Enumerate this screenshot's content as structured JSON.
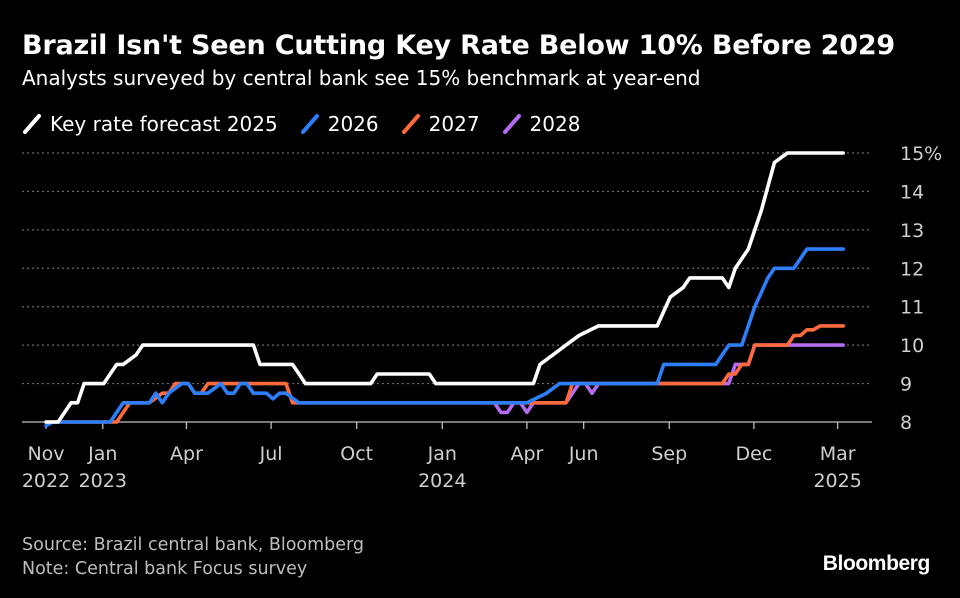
{
  "header": {
    "title": "Brazil Isn't Seen Cutting Key Rate Below 10% Before 2029",
    "subtitle": "Analysts surveyed by central bank see 15% benchmark at year-end"
  },
  "footer": {
    "source": "Source: Brazil central bank, Bloomberg",
    "note": "Note: Central bank Focus survey",
    "logo": "Bloomberg"
  },
  "chart_data": {
    "type": "line",
    "title": "Brazil Isn't Seen Cutting Key Rate Below 10% Before 2029",
    "subtitle": "Analysts surveyed by central bank see 15% benchmark at year-end",
    "xlabel": "",
    "ylabel": "",
    "ylim": [
      8,
      15
    ],
    "xlim": [
      "2022-11-01",
      "2025-03-10"
    ],
    "grid": "horizontal dotted",
    "legend_position": "top-left",
    "y_ticks": [
      {
        "value": 8,
        "label": "8"
      },
      {
        "value": 9,
        "label": "9"
      },
      {
        "value": 10,
        "label": "10"
      },
      {
        "value": 11,
        "label": "11"
      },
      {
        "value": 12,
        "label": "12"
      },
      {
        "value": 13,
        "label": "13"
      },
      {
        "value": 14,
        "label": "14"
      },
      {
        "value": 15,
        "label": "15%"
      }
    ],
    "x_ticks": [
      {
        "date": "2022-11-01",
        "label": "Nov",
        "year": "2022"
      },
      {
        "date": "2023-01-01",
        "label": "Jan",
        "year": "2023"
      },
      {
        "date": "2023-04-01",
        "label": "Apr",
        "year": ""
      },
      {
        "date": "2023-07-01",
        "label": "Jul",
        "year": ""
      },
      {
        "date": "2023-10-01",
        "label": "Oct",
        "year": ""
      },
      {
        "date": "2024-01-01",
        "label": "Jan",
        "year": "2024"
      },
      {
        "date": "2024-04-01",
        "label": "Apr",
        "year": ""
      },
      {
        "date": "2024-06-01",
        "label": "Jun",
        "year": ""
      },
      {
        "date": "2024-09-01",
        "label": "Sep",
        "year": ""
      },
      {
        "date": "2024-12-01",
        "label": "Dec",
        "year": ""
      },
      {
        "date": "2025-03-01",
        "label": "Mar",
        "year": "2025"
      }
    ],
    "series": [
      {
        "name": "2028",
        "color": "#b46cf0",
        "points": [
          [
            "2024-02-26",
            8.5
          ],
          [
            "2024-03-04",
            8.25
          ],
          [
            "2024-03-11",
            8.25
          ],
          [
            "2024-03-18",
            8.5
          ],
          [
            "2024-03-25",
            8.5
          ],
          [
            "2024-04-01",
            8.25
          ],
          [
            "2024-04-08",
            8.5
          ],
          [
            "2024-04-15",
            8.5
          ],
          [
            "2024-04-22",
            8.5
          ],
          [
            "2024-04-29",
            8.5
          ],
          [
            "2024-05-06",
            8.5
          ],
          [
            "2024-05-13",
            8.5
          ],
          [
            "2024-05-20",
            8.75
          ],
          [
            "2024-05-27",
            9.0
          ],
          [
            "2024-06-03",
            9.0
          ],
          [
            "2024-06-10",
            8.75
          ],
          [
            "2024-06-17",
            9.0
          ],
          [
            "2024-11-04",
            9.0
          ],
          [
            "2024-11-11",
            9.5
          ],
          [
            "2024-11-25",
            9.5
          ],
          [
            "2024-12-02",
            10.0
          ],
          [
            "2025-03-07",
            10.0
          ]
        ]
      },
      {
        "name": "2027",
        "color": "#ff6a3d",
        "points": [
          [
            "2022-11-01",
            8.0
          ],
          [
            "2023-01-16",
            8.0
          ],
          [
            "2023-01-30",
            8.5
          ],
          [
            "2023-02-20",
            8.5
          ],
          [
            "2023-03-06",
            8.75
          ],
          [
            "2023-03-13",
            8.75
          ],
          [
            "2023-03-20",
            9.0
          ],
          [
            "2023-04-03",
            9.0
          ],
          [
            "2023-04-10",
            8.75
          ],
          [
            "2023-04-17",
            8.75
          ],
          [
            "2023-04-24",
            9.0
          ],
          [
            "2023-05-08",
            9.0
          ],
          [
            "2023-05-15",
            9.0
          ],
          [
            "2023-07-17",
            9.0
          ],
          [
            "2023-07-24",
            8.5
          ],
          [
            "2024-04-29",
            8.5
          ],
          [
            "2024-05-06",
            8.5
          ],
          [
            "2024-05-13",
            8.5
          ],
          [
            "2024-05-20",
            9.0
          ],
          [
            "2024-08-26",
            9.0
          ],
          [
            "2024-09-09",
            9.0
          ],
          [
            "2024-10-28",
            9.0
          ],
          [
            "2024-11-04",
            9.25
          ],
          [
            "2024-11-11",
            9.25
          ],
          [
            "2024-11-18",
            9.5
          ],
          [
            "2024-11-25",
            9.5
          ],
          [
            "2024-12-02",
            10.0
          ],
          [
            "2025-01-06",
            10.0
          ],
          [
            "2025-01-13",
            10.25
          ],
          [
            "2025-01-20",
            10.25
          ],
          [
            "2025-01-27",
            10.4
          ],
          [
            "2025-02-03",
            10.4
          ],
          [
            "2025-02-10",
            10.5
          ],
          [
            "2025-03-07",
            10.5
          ]
        ]
      },
      {
        "name": "2026",
        "color": "#2d7ff9",
        "points": [
          [
            "2022-11-01",
            7.9
          ],
          [
            "2022-11-08",
            8.0
          ],
          [
            "2023-01-09",
            8.0
          ],
          [
            "2023-01-23",
            8.5
          ],
          [
            "2023-02-20",
            8.5
          ],
          [
            "2023-02-27",
            8.75
          ],
          [
            "2023-03-06",
            8.5
          ],
          [
            "2023-03-13",
            8.75
          ],
          [
            "2023-03-27",
            9.0
          ],
          [
            "2023-04-03",
            9.0
          ],
          [
            "2023-04-10",
            8.75
          ],
          [
            "2023-04-24",
            8.75
          ],
          [
            "2023-05-08",
            9.0
          ],
          [
            "2023-05-15",
            8.75
          ],
          [
            "2023-05-22",
            8.75
          ],
          [
            "2023-05-29",
            9.0
          ],
          [
            "2023-06-05",
            9.0
          ],
          [
            "2023-06-12",
            8.75
          ],
          [
            "2023-06-26",
            8.75
          ],
          [
            "2023-07-03",
            8.6
          ],
          [
            "2023-07-10",
            8.75
          ],
          [
            "2023-07-17",
            8.75
          ],
          [
            "2023-07-31",
            8.5
          ],
          [
            "2024-04-01",
            8.5
          ],
          [
            "2024-04-22",
            8.75
          ],
          [
            "2024-05-06",
            9.0
          ],
          [
            "2024-08-19",
            9.0
          ],
          [
            "2024-08-26",
            9.5
          ],
          [
            "2024-10-21",
            9.5
          ],
          [
            "2024-11-04",
            10.0
          ],
          [
            "2024-11-18",
            10.0
          ],
          [
            "2024-12-02",
            11.0
          ],
          [
            "2024-12-16",
            11.75
          ],
          [
            "2024-12-23",
            12.0
          ],
          [
            "2025-01-13",
            12.0
          ],
          [
            "2025-01-27",
            12.5
          ],
          [
            "2025-03-07",
            12.5
          ]
        ]
      },
      {
        "name": "Key rate forecast 2025",
        "color": "#ffffff",
        "points": [
          [
            "2022-11-01",
            8.0
          ],
          [
            "2022-11-14",
            8.0
          ],
          [
            "2022-11-28",
            8.5
          ],
          [
            "2022-12-05",
            8.5
          ],
          [
            "2022-12-12",
            9.0
          ],
          [
            "2023-01-02",
            9.0
          ],
          [
            "2023-01-16",
            9.5
          ],
          [
            "2023-01-23",
            9.5
          ],
          [
            "2023-02-06",
            9.75
          ],
          [
            "2023-02-13",
            10.0
          ],
          [
            "2023-06-12",
            10.0
          ],
          [
            "2023-06-19",
            9.5
          ],
          [
            "2023-07-24",
            9.5
          ],
          [
            "2023-08-07",
            9.0
          ],
          [
            "2023-10-16",
            9.0
          ],
          [
            "2023-10-23",
            9.25
          ],
          [
            "2023-12-18",
            9.25
          ],
          [
            "2023-12-25",
            9.0
          ],
          [
            "2024-04-08",
            9.0
          ],
          [
            "2024-04-15",
            9.5
          ],
          [
            "2024-04-29",
            9.75
          ],
          [
            "2024-05-13",
            10.0
          ],
          [
            "2024-05-27",
            10.25
          ],
          [
            "2024-06-17",
            10.5
          ],
          [
            "2024-08-19",
            10.5
          ],
          [
            "2024-09-02",
            11.25
          ],
          [
            "2024-09-16",
            11.5
          ],
          [
            "2024-09-23",
            11.75
          ],
          [
            "2024-10-28",
            11.75
          ],
          [
            "2024-11-04",
            11.5
          ],
          [
            "2024-11-11",
            12.0
          ],
          [
            "2024-11-25",
            12.5
          ],
          [
            "2024-12-09",
            13.5
          ],
          [
            "2024-12-23",
            14.75
          ],
          [
            "2025-01-06",
            15.0
          ],
          [
            "2025-03-07",
            15.0
          ]
        ]
      }
    ]
  }
}
